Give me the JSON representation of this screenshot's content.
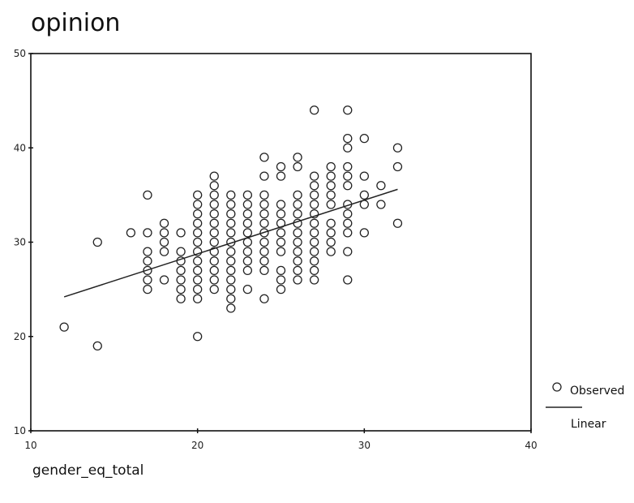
{
  "chart_data": {
    "type": "scatter",
    "title": "opinion",
    "xlabel": "gender_eq_total",
    "ylabel": "",
    "xlim": [
      10,
      40
    ],
    "ylim": [
      10,
      50
    ],
    "xticks": [
      10,
      20,
      30,
      40
    ],
    "yticks": [
      10,
      20,
      30,
      40,
      50
    ],
    "grid": false,
    "legend_position": "right",
    "legend": [
      "Observed",
      "Linear"
    ],
    "series": [
      {
        "name": "Observed",
        "kind": "points",
        "marker": "open-circle",
        "points": [
          [
            12,
            21
          ],
          [
            14,
            30
          ],
          [
            14,
            19
          ],
          [
            16,
            31
          ],
          [
            17,
            35
          ],
          [
            17,
            31
          ],
          [
            17,
            29
          ],
          [
            17,
            28
          ],
          [
            17,
            27
          ],
          [
            17,
            26
          ],
          [
            17,
            25
          ],
          [
            18,
            32
          ],
          [
            18,
            31
          ],
          [
            18,
            30
          ],
          [
            18,
            29
          ],
          [
            18,
            26
          ],
          [
            19,
            31
          ],
          [
            19,
            29
          ],
          [
            19,
            28
          ],
          [
            19,
            27
          ],
          [
            19,
            26
          ],
          [
            19,
            25
          ],
          [
            19,
            24
          ],
          [
            20,
            35
          ],
          [
            20,
            34
          ],
          [
            20,
            33
          ],
          [
            20,
            32
          ],
          [
            20,
            31
          ],
          [
            20,
            30
          ],
          [
            20,
            29
          ],
          [
            20,
            28
          ],
          [
            20,
            27
          ],
          [
            20,
            26
          ],
          [
            20,
            25
          ],
          [
            20,
            24
          ],
          [
            20,
            20
          ],
          [
            21,
            37
          ],
          [
            21,
            36
          ],
          [
            21,
            35
          ],
          [
            21,
            34
          ],
          [
            21,
            33
          ],
          [
            21,
            32
          ],
          [
            21,
            31
          ],
          [
            21,
            30
          ],
          [
            21,
            29
          ],
          [
            21,
            28
          ],
          [
            21,
            27
          ],
          [
            21,
            26
          ],
          [
            21,
            25
          ],
          [
            22,
            35
          ],
          [
            22,
            34
          ],
          [
            22,
            33
          ],
          [
            22,
            32
          ],
          [
            22,
            31
          ],
          [
            22,
            30
          ],
          [
            22,
            29
          ],
          [
            22,
            28
          ],
          [
            22,
            27
          ],
          [
            22,
            26
          ],
          [
            22,
            25
          ],
          [
            22,
            24
          ],
          [
            22,
            23
          ],
          [
            23,
            35
          ],
          [
            23,
            34
          ],
          [
            23,
            33
          ],
          [
            23,
            32
          ],
          [
            23,
            31
          ],
          [
            23,
            30
          ],
          [
            23,
            29
          ],
          [
            23,
            28
          ],
          [
            23,
            27
          ],
          [
            23,
            25
          ],
          [
            24,
            39
          ],
          [
            24,
            37
          ],
          [
            24,
            35
          ],
          [
            24,
            34
          ],
          [
            24,
            33
          ],
          [
            24,
            32
          ],
          [
            24,
            31
          ],
          [
            24,
            30
          ],
          [
            24,
            29
          ],
          [
            24,
            28
          ],
          [
            24,
            27
          ],
          [
            24,
            24
          ],
          [
            25,
            38
          ],
          [
            25,
            37
          ],
          [
            25,
            34
          ],
          [
            25,
            33
          ],
          [
            25,
            32
          ],
          [
            25,
            31
          ],
          [
            25,
            30
          ],
          [
            25,
            29
          ],
          [
            25,
            27
          ],
          [
            25,
            26
          ],
          [
            25,
            25
          ],
          [
            26,
            39
          ],
          [
            26,
            38
          ],
          [
            26,
            35
          ],
          [
            26,
            34
          ],
          [
            26,
            33
          ],
          [
            26,
            32
          ],
          [
            26,
            31
          ],
          [
            26,
            30
          ],
          [
            26,
            29
          ],
          [
            26,
            28
          ],
          [
            26,
            27
          ],
          [
            26,
            26
          ],
          [
            27,
            44
          ],
          [
            27,
            37
          ],
          [
            27,
            36
          ],
          [
            27,
            35
          ],
          [
            27,
            34
          ],
          [
            27,
            33
          ],
          [
            27,
            32
          ],
          [
            27,
            31
          ],
          [
            27,
            30
          ],
          [
            27,
            29
          ],
          [
            27,
            28
          ],
          [
            27,
            27
          ],
          [
            27,
            26
          ],
          [
            28,
            38
          ],
          [
            28,
            37
          ],
          [
            28,
            36
          ],
          [
            28,
            35
          ],
          [
            28,
            34
          ],
          [
            28,
            32
          ],
          [
            28,
            31
          ],
          [
            28,
            30
          ],
          [
            28,
            29
          ],
          [
            29,
            44
          ],
          [
            29,
            41
          ],
          [
            29,
            40
          ],
          [
            29,
            38
          ],
          [
            29,
            37
          ],
          [
            29,
            36
          ],
          [
            29,
            34
          ],
          [
            29,
            33
          ],
          [
            29,
            32
          ],
          [
            29,
            31
          ],
          [
            29,
            29
          ],
          [
            29,
            26
          ],
          [
            30,
            41
          ],
          [
            30,
            37
          ],
          [
            30,
            35
          ],
          [
            30,
            34
          ],
          [
            30,
            31
          ],
          [
            31,
            36
          ],
          [
            31,
            34
          ],
          [
            32,
            40
          ],
          [
            32,
            38
          ],
          [
            32,
            32
          ]
        ]
      },
      {
        "name": "Linear",
        "kind": "line",
        "points": [
          [
            12,
            24.2
          ],
          [
            32,
            35.6
          ]
        ]
      }
    ]
  },
  "colors": {
    "background": "#ffffff",
    "axis": "#111111",
    "marker": "#222222",
    "line": "#222222"
  }
}
